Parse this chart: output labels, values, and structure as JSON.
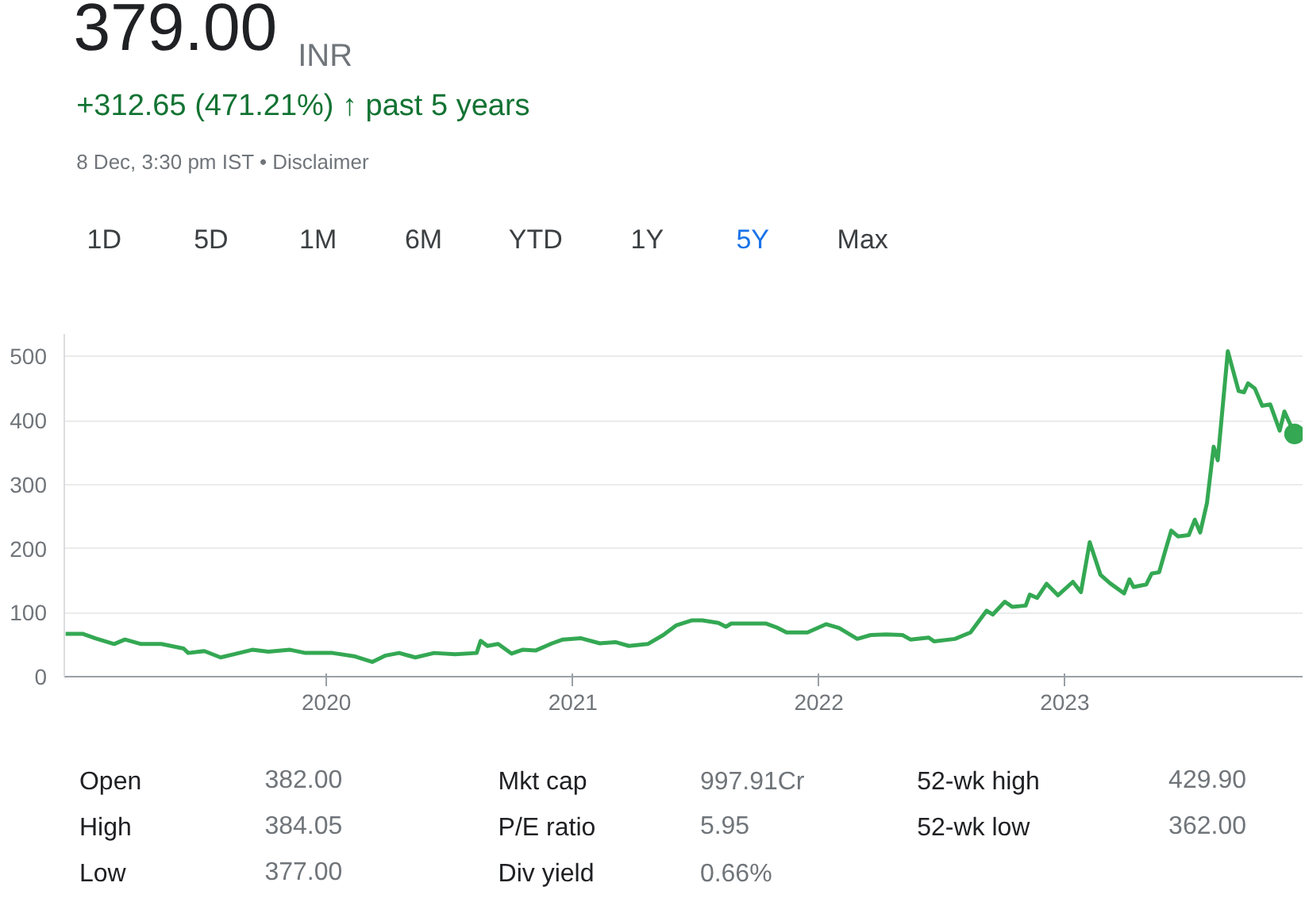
{
  "chart_data": {
    "type": "line",
    "title": "379.00",
    "subtitle": "+312.65 (471.21%) ↑ past 5 years",
    "annotations": [
      "INR",
      "8 Dec, 3:30 pm IST • Disclaimer",
      "1D",
      "5D",
      "1M",
      "6M",
      "YTD",
      "1Y",
      "5Y",
      "Max",
      "Open",
      "382.00",
      "Mkt cap",
      "997.91Cr",
      "52-wk high",
      "429.90",
      "High",
      "384.05",
      "P/E ratio",
      "5.95",
      "52-wk low",
      "362.00",
      "Low",
      "377.00",
      "Div yield",
      "0.66%"
    ],
    "xlim": [
      "2018-12-08",
      "2023-12-20"
    ],
    "xticks": [
      "2020",
      "2021",
      "2022",
      "2023"
    ],
    "ylim": [
      0,
      535
    ],
    "yticks": [
      0,
      100,
      200,
      300,
      400,
      500
    ],
    "grid": "y",
    "series": [
      {
        "type": "line",
        "color": "#34a853",
        "marker": "none",
        "x": [
          "2018-12-10",
          "2019-01-04",
          "2019-01-23",
          "2019-02-20",
          "2019-03-08",
          "2019-04-01",
          "2019-05-01",
          "2019-06-03",
          "2019-06-10",
          "2019-07-04",
          "2019-07-28",
          "2019-08-21",
          "2019-09-13",
          "2019-10-07",
          "2019-11-08",
          "2019-12-01",
          "2020-01-10",
          "2020-02-11",
          "2020-03-09",
          "2020-03-29",
          "2020-04-18",
          "2020-05-12",
          "2020-06-09",
          "2020-07-10",
          "2020-08-11",
          "2020-08-17",
          "2020-08-27",
          "2020-09-12",
          "2020-10-02",
          "2020-10-18",
          "2020-11-07",
          "2020-12-01",
          "2020-12-17",
          "2021-01-13",
          "2021-02-10",
          "2021-03-05",
          "2021-03-25",
          "2021-04-22",
          "2021-05-15",
          "2021-06-03",
          "2021-06-27",
          "2021-07-12",
          "2021-08-05",
          "2021-08-16",
          "2021-08-24",
          "2021-09-13",
          "2021-10-14",
          "2021-10-30",
          "2021-11-14",
          "2021-12-15",
          "2022-01-12",
          "2022-01-31",
          "2022-02-27",
          "2022-03-19",
          "2022-04-11",
          "2022-05-05",
          "2022-05-17",
          "2022-06-13",
          "2022-06-21",
          "2022-07-22",
          "2022-08-14",
          "2022-09-07",
          "2022-09-16",
          "2022-10-04",
          "2022-10-15",
          "2022-11-04",
          "2022-11-10",
          "2022-11-21",
          "2022-12-05",
          "2022-12-22",
          "2023-01-13",
          "2023-01-25",
          "2023-02-07",
          "2023-02-23",
          "2023-03-09",
          "2023-03-30",
          "2023-04-07",
          "2023-04-13",
          "2023-05-02",
          "2023-05-10",
          "2023-05-21",
          "2023-05-30",
          "2023-06-08",
          "2023-06-18",
          "2023-07-04",
          "2023-07-13",
          "2023-07-21",
          "2023-07-31",
          "2023-08-10",
          "2023-08-16",
          "2023-08-31",
          "2023-09-16",
          "2023-09-24",
          "2023-09-30",
          "2023-10-10",
          "2023-10-21",
          "2023-11-02",
          "2023-11-16",
          "2023-11-23",
          "2023-12-08"
        ],
        "values": [
          67,
          67,
          60,
          51,
          58,
          51,
          51,
          44,
          37,
          40,
          30,
          36,
          42,
          39,
          42,
          37,
          37,
          32,
          23,
          33,
          37,
          30,
          37,
          35,
          37,
          56,
          48,
          51,
          36,
          42,
          41,
          52,
          58,
          60,
          52,
          54,
          48,
          51,
          65,
          80,
          88,
          88,
          84,
          78,
          83,
          83,
          83,
          77,
          69,
          69,
          82,
          76,
          59,
          65,
          66,
          65,
          58,
          61,
          55,
          59,
          69,
          103,
          97,
          117,
          109,
          111,
          128,
          123,
          145,
          127,
          148,
          132,
          210,
          159,
          146,
          130,
          152,
          140,
          144,
          161,
          163,
          196,
          228,
          219,
          221,
          245,
          225,
          271,
          359,
          338,
          508,
          446,
          444,
          458,
          450,
          423,
          425,
          384,
          414,
          379
        ]
      },
      {
        "type": "scatter",
        "color": "#34a853",
        "marker": "circle",
        "x": [
          "2023-12-08"
        ],
        "values": [
          379
        ]
      }
    ]
  }
}
